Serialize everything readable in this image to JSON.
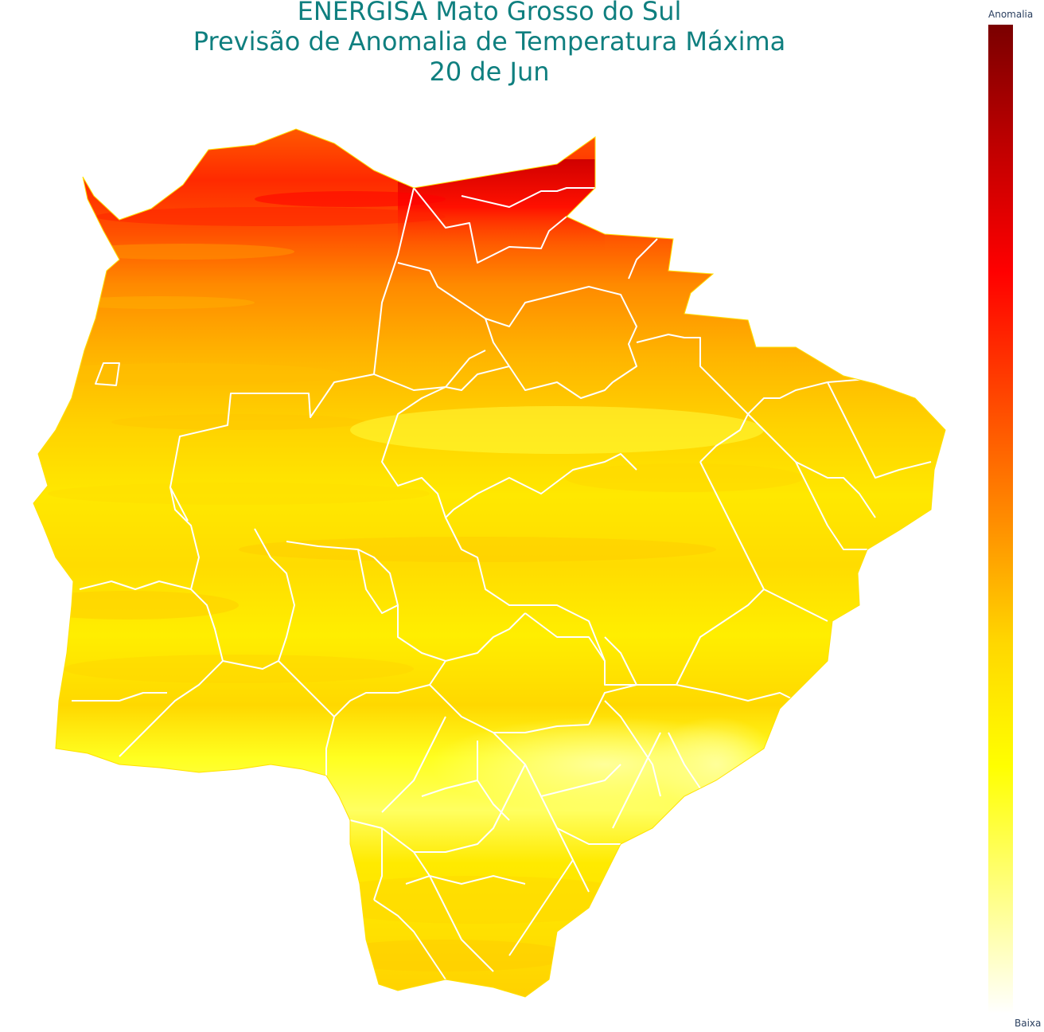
{
  "title": {
    "line1": "ENERGISA Mato Grosso do Sul",
    "line2": "Previsão de Anomalia de Temperatura Máxima",
    "line3": "20 de Jun"
  },
  "colorbar": {
    "top_label": "Anomalia",
    "bottom_label": "Baixa",
    "stops": [
      "#ffffff",
      "#ffff80",
      "#ffff00",
      "#ffd700",
      "#ff8c00",
      "#ff4500",
      "#ff0000",
      "#c00000",
      "#7a0000"
    ]
  },
  "map": {
    "region": "Mato Grosso do Sul",
    "boundary_color": "#ffffff",
    "bands": [
      {
        "band": "north-edge",
        "color": "#ff5a00"
      },
      {
        "band": "north",
        "color": "#ff1a00"
      },
      {
        "band": "north-east",
        "color": "#e60000"
      },
      {
        "band": "north-central",
        "color": "#ff7a00"
      },
      {
        "band": "upper-middle",
        "color": "#ffb000"
      },
      {
        "band": "middle",
        "color": "#ffd400"
      },
      {
        "band": "central",
        "color": "#ffee00"
      },
      {
        "band": "south-central",
        "color": "#ffff20"
      },
      {
        "band": "south-east",
        "color": "#ffff90"
      },
      {
        "band": "south",
        "color": "#ffe000"
      }
    ]
  }
}
